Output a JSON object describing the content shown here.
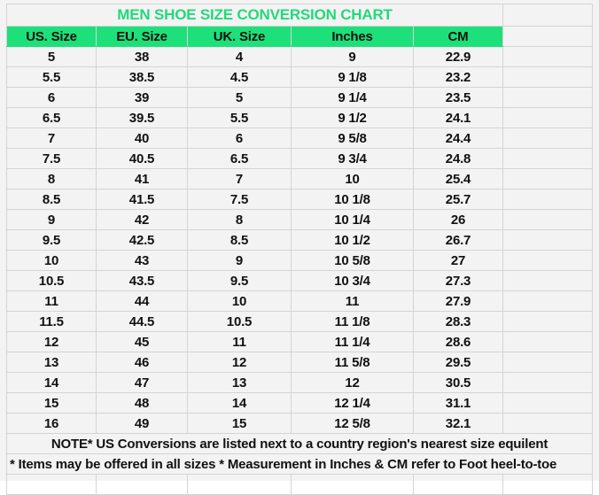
{
  "title": "MEN SHOE SIZE CONVERSION CHART",
  "headers": [
    "US. Size",
    "EU. Size",
    "UK. Size",
    "Inches",
    "CM"
  ],
  "rows": [
    [
      "5",
      "38",
      "4",
      "9",
      "22.9"
    ],
    [
      "5.5",
      "38.5",
      "4.5",
      "9 1/8",
      "23.2"
    ],
    [
      "6",
      "39",
      "5",
      "9 1/4",
      "23.5"
    ],
    [
      "6.5",
      "39.5",
      "5.5",
      "9 1/2",
      "24.1"
    ],
    [
      "7",
      "40",
      "6",
      "9 5/8",
      "24.4"
    ],
    [
      "7.5",
      "40.5",
      "6.5",
      "9 3/4",
      "24.8"
    ],
    [
      "8",
      "41",
      "7",
      "10",
      "25.4"
    ],
    [
      "8.5",
      "41.5",
      "7.5",
      "10 1/8",
      "25.7"
    ],
    [
      "9",
      "42",
      "8",
      "10 1/4",
      "26"
    ],
    [
      "9.5",
      "42.5",
      "8.5",
      "10 1/2",
      "26.7"
    ],
    [
      "10",
      "43",
      "9",
      "10 5/8",
      "27"
    ],
    [
      "10.5",
      "43.5",
      "9.5",
      "10 3/4",
      "27.3"
    ],
    [
      "11",
      "44",
      "10",
      "11",
      "27.9"
    ],
    [
      "11.5",
      "44.5",
      "10.5",
      "11 1/8",
      "28.3"
    ],
    [
      "12",
      "45",
      "11",
      "11 1/4",
      "28.6"
    ],
    [
      "13",
      "46",
      "12",
      "11 5/8",
      "29.5"
    ],
    [
      "14",
      "47",
      "13",
      "12",
      "30.5"
    ],
    [
      "15",
      "48",
      "14",
      "12 1/4",
      "31.1"
    ],
    [
      "16",
      "49",
      "15",
      "12 5/8",
      "32.1"
    ]
  ],
  "note1": "NOTE* US Conversions are listed next to a country region's nearest size equilent",
  "note2": "* Items may be offered in all sizes * Measurement in Inches & CM refer to Foot heel-to-toe",
  "colors": {
    "header_bg": "#1ee07a",
    "title_text": "#22d97a"
  }
}
